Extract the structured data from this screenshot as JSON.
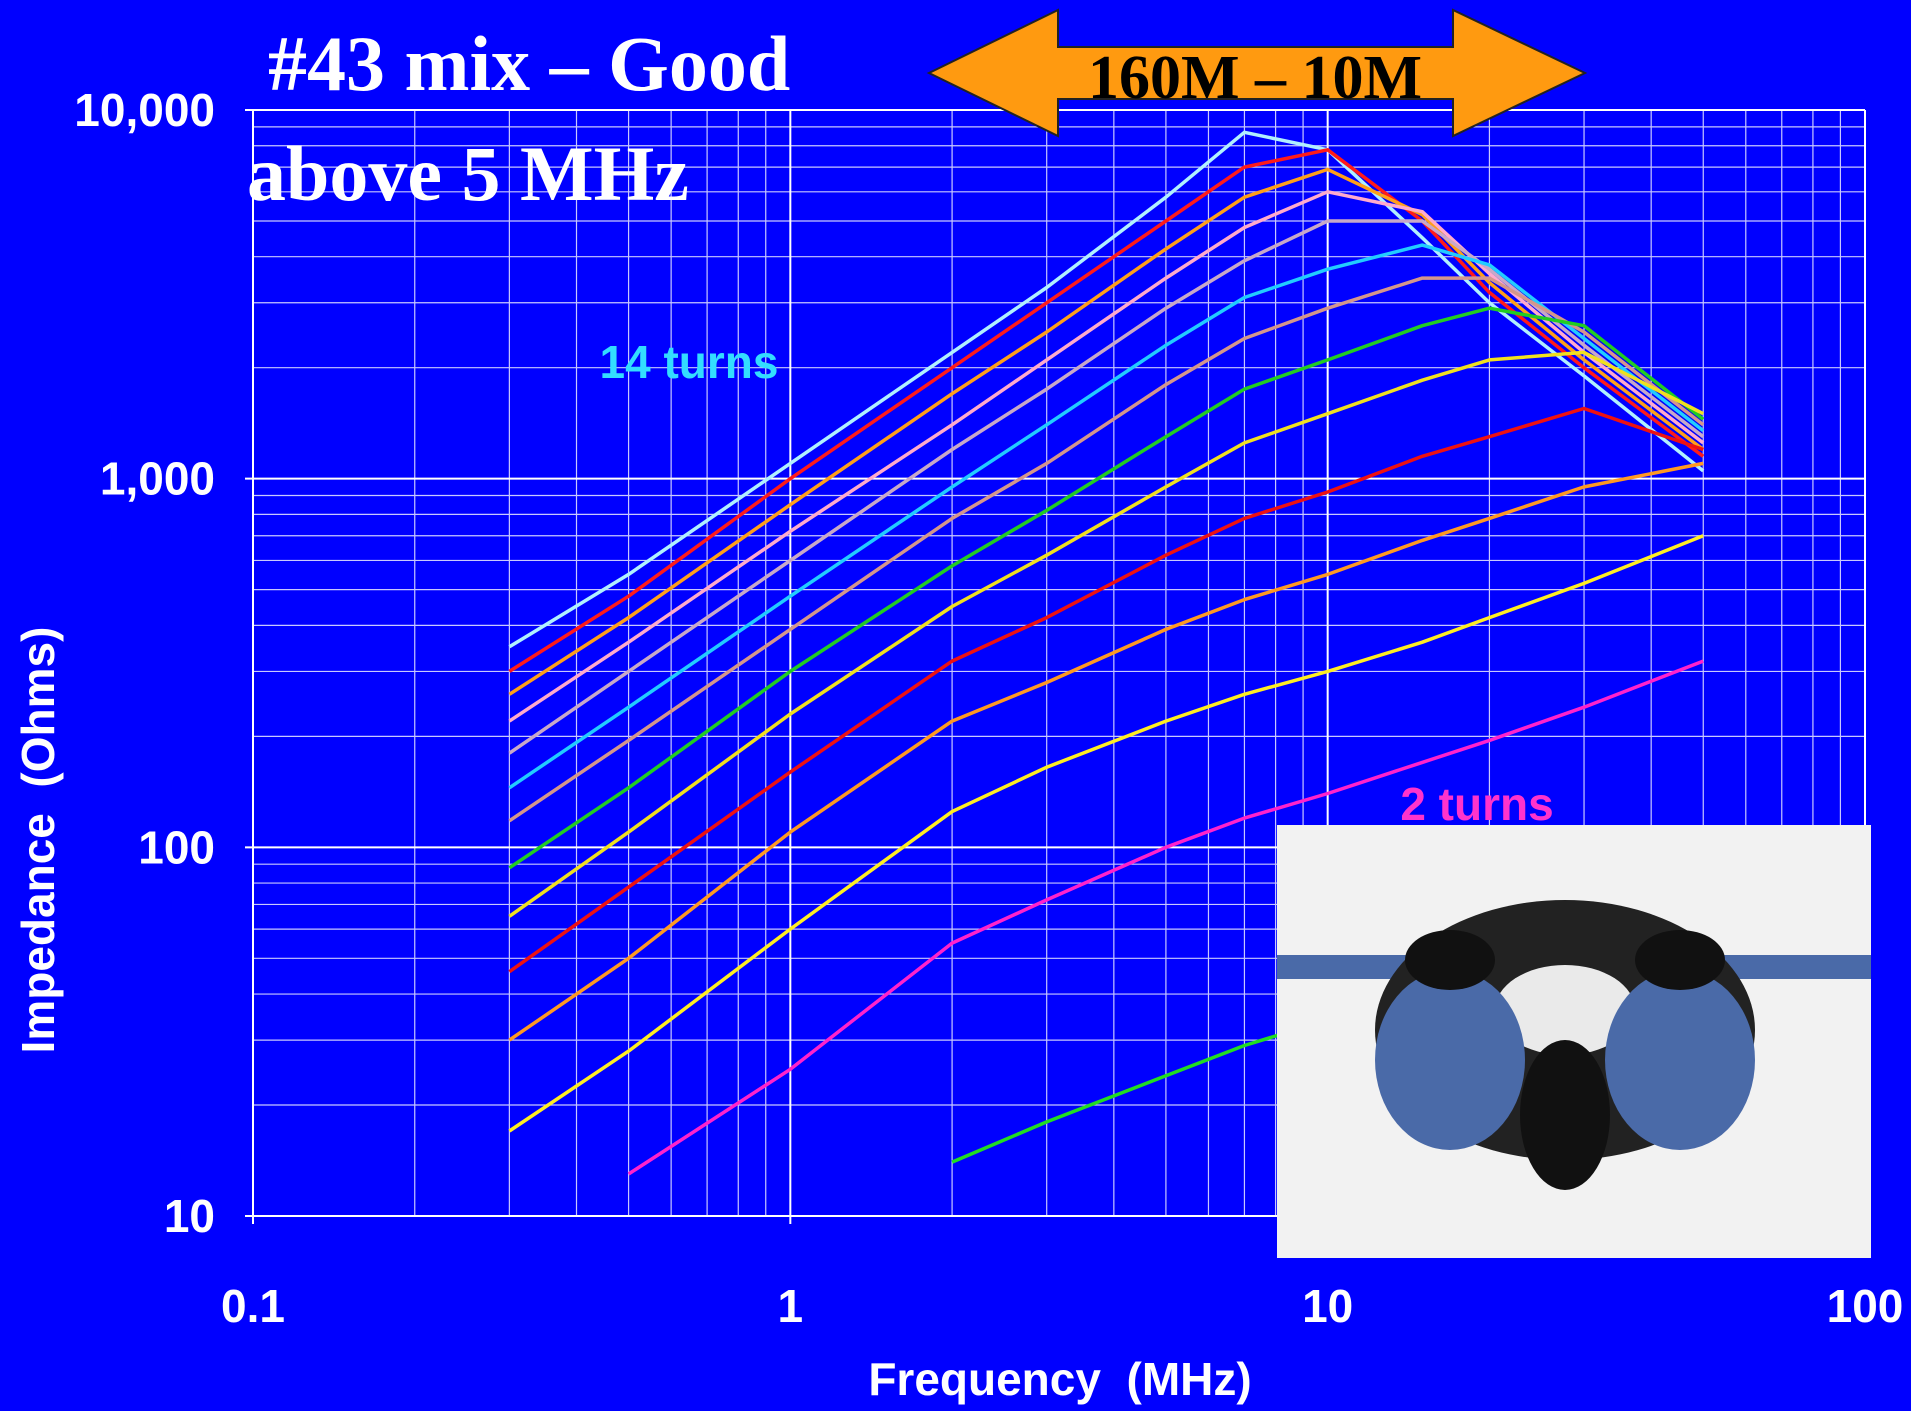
{
  "chart_data": {
    "type": "line",
    "title_lines": [
      "#43 mix – Good",
      "above 5 MHz"
    ],
    "band_label": "160M – 10M",
    "xlabel": "Frequency  (MHz)",
    "ylabel": "Impedance  (Ohms)",
    "annotations": [
      {
        "text": "14 turns",
        "color": "#33ddff"
      },
      {
        "text": "2 turns",
        "color": "#ff33cc"
      }
    ],
    "log_x": true,
    "log_y": true,
    "grid": true,
    "xlim": [
      0.1,
      100
    ],
    "ylim": [
      10,
      10000
    ],
    "xticks": [
      0.1,
      1,
      10,
      100
    ],
    "yticks": [
      10,
      100,
      {
        "value": 1000,
        "label": "1,000"
      },
      {
        "value": 10000,
        "label": "10,000"
      }
    ],
    "xminor": [
      0.2,
      0.3,
      0.4,
      0.5,
      0.6,
      0.7,
      0.8,
      0.9,
      2,
      3,
      4,
      5,
      6,
      7,
      8,
      9,
      20,
      30,
      40,
      50,
      60,
      70,
      80,
      90
    ],
    "yminor": [
      20,
      30,
      40,
      50,
      60,
      70,
      80,
      90,
      200,
      300,
      400,
      500,
      600,
      700,
      800,
      900,
      2000,
      3000,
      4000,
      5000,
      6000,
      7000,
      8000,
      9000
    ],
    "x": [
      0.3,
      0.5,
      1,
      2,
      3,
      5,
      7,
      10,
      15,
      20,
      30,
      50
    ],
    "series": [
      {
        "color": "#b0f0ff",
        "values": [
          350,
          550,
          1100,
          2200,
          3300,
          5800,
          8700,
          7800,
          4500,
          3000,
          1900,
          1050
        ]
      },
      {
        "color": "#ff1a1a",
        "values": [
          300,
          480,
          1000,
          2000,
          3000,
          5000,
          7000,
          7800,
          5000,
          3200,
          2000,
          1150
        ]
      },
      {
        "color": "#ff9f1a",
        "values": [
          260,
          420,
          850,
          1700,
          2500,
          4200,
          5800,
          6900,
          5200,
          3400,
          2100,
          1200
        ]
      },
      {
        "color": "#ffaacc",
        "values": [
          220,
          360,
          720,
          1400,
          2100,
          3500,
          4800,
          6000,
          5300,
          3600,
          2200,
          1250
        ]
      },
      {
        "color": "#c8a8c8",
        "values": [
          180,
          300,
          600,
          1200,
          1750,
          2900,
          3900,
          5000,
          5000,
          3700,
          2300,
          1300
        ]
      },
      {
        "color": "#22ccff",
        "values": [
          145,
          240,
          480,
          950,
          1400,
          2300,
          3100,
          3700,
          4300,
          3800,
          2400,
          1350
        ]
      },
      {
        "color": "#d4968c",
        "values": [
          118,
          195,
          390,
          780,
          1100,
          1800,
          2400,
          2900,
          3500,
          3500,
          2500,
          1400
        ]
      },
      {
        "color": "#22cc22",
        "values": [
          88,
          145,
          300,
          580,
          820,
          1300,
          1750,
          2100,
          2600,
          2900,
          2600,
          1450
        ]
      },
      {
        "color": "#f0e020",
        "values": [
          65,
          110,
          230,
          450,
          620,
          950,
          1250,
          1500,
          1850,
          2100,
          2200,
          1500
        ]
      },
      {
        "color": "#ee1111",
        "values": [
          46,
          78,
          160,
          320,
          420,
          620,
          780,
          920,
          1150,
          1300,
          1550,
          1200
        ]
      },
      {
        "color": "#ff9922",
        "values": [
          30,
          50,
          110,
          220,
          280,
          390,
          470,
          550,
          680,
          780,
          950,
          1100
        ]
      },
      {
        "color": "#ffee22",
        "values": [
          17,
          28,
          60,
          125,
          165,
          220,
          260,
          300,
          360,
          420,
          520,
          700
        ]
      },
      {
        "color": "#ff22cc",
        "values": [
          null,
          13,
          25,
          55,
          72,
          100,
          120,
          140,
          170,
          195,
          240,
          320
        ]
      },
      {
        "color": "#22dd22",
        "values": [
          null,
          null,
          null,
          14,
          18,
          24,
          29,
          34,
          null,
          null,
          null,
          null
        ]
      }
    ]
  }
}
